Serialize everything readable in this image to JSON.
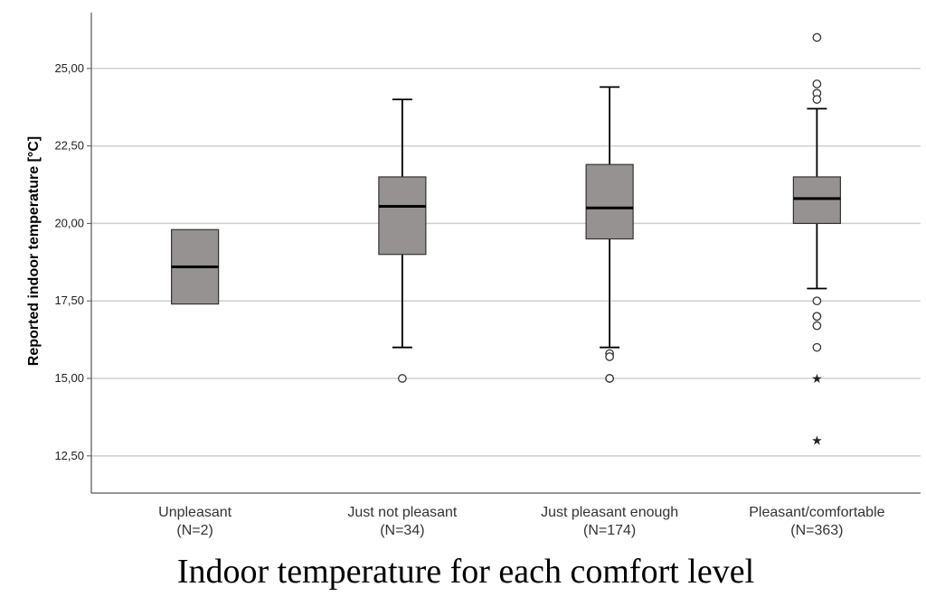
{
  "chart_data": {
    "type": "boxplot",
    "title": "Indoor temperature for each comfort level",
    "xlabel": "",
    "ylabel": "Reported indoor temperature [°C]",
    "ylim": [
      11.3,
      26.8
    ],
    "yticks": [
      12.5,
      15.0,
      17.5,
      20.0,
      22.5,
      25.0
    ],
    "ytick_labels": [
      "12,50",
      "15,00",
      "17,50",
      "20,00",
      "22,50",
      "25,00"
    ],
    "grid": true,
    "colors": {
      "box_fill": "#969292",
      "box_stroke": "#333333",
      "median": "#000000",
      "grid": "#cfcfcf",
      "axis": "#555555"
    },
    "categories": [
      {
        "label": "Unpleasant",
        "n_label": "(N=2)",
        "min": 17.4,
        "q1": 17.4,
        "median": 18.6,
        "q3": 19.8,
        "max": 19.8,
        "outliers": [],
        "extremes": []
      },
      {
        "label": "Just not pleasant",
        "n_label": "(N=34)",
        "min": 16.0,
        "q1": 19.0,
        "median": 20.55,
        "q3": 21.5,
        "max": 24.0,
        "outliers": [
          15.0
        ],
        "extremes": []
      },
      {
        "label": "Just pleasant enough",
        "n_label": "(N=174)",
        "min": 16.0,
        "q1": 19.5,
        "median": 20.5,
        "q3": 21.9,
        "max": 24.4,
        "outliers": [
          15.8,
          15.7,
          15.0,
          15.0
        ],
        "extremes": []
      },
      {
        "label": "Pleasant/comfortable",
        "n_label": "(N=363)",
        "min": 17.9,
        "q1": 20.0,
        "median": 20.8,
        "q3": 21.5,
        "max": 23.7,
        "outliers": [
          26.0,
          24.5,
          24.2,
          24.0,
          17.5,
          17.0,
          17.0,
          16.7,
          16.0
        ],
        "extremes": [
          15.0,
          13.0
        ]
      }
    ]
  }
}
